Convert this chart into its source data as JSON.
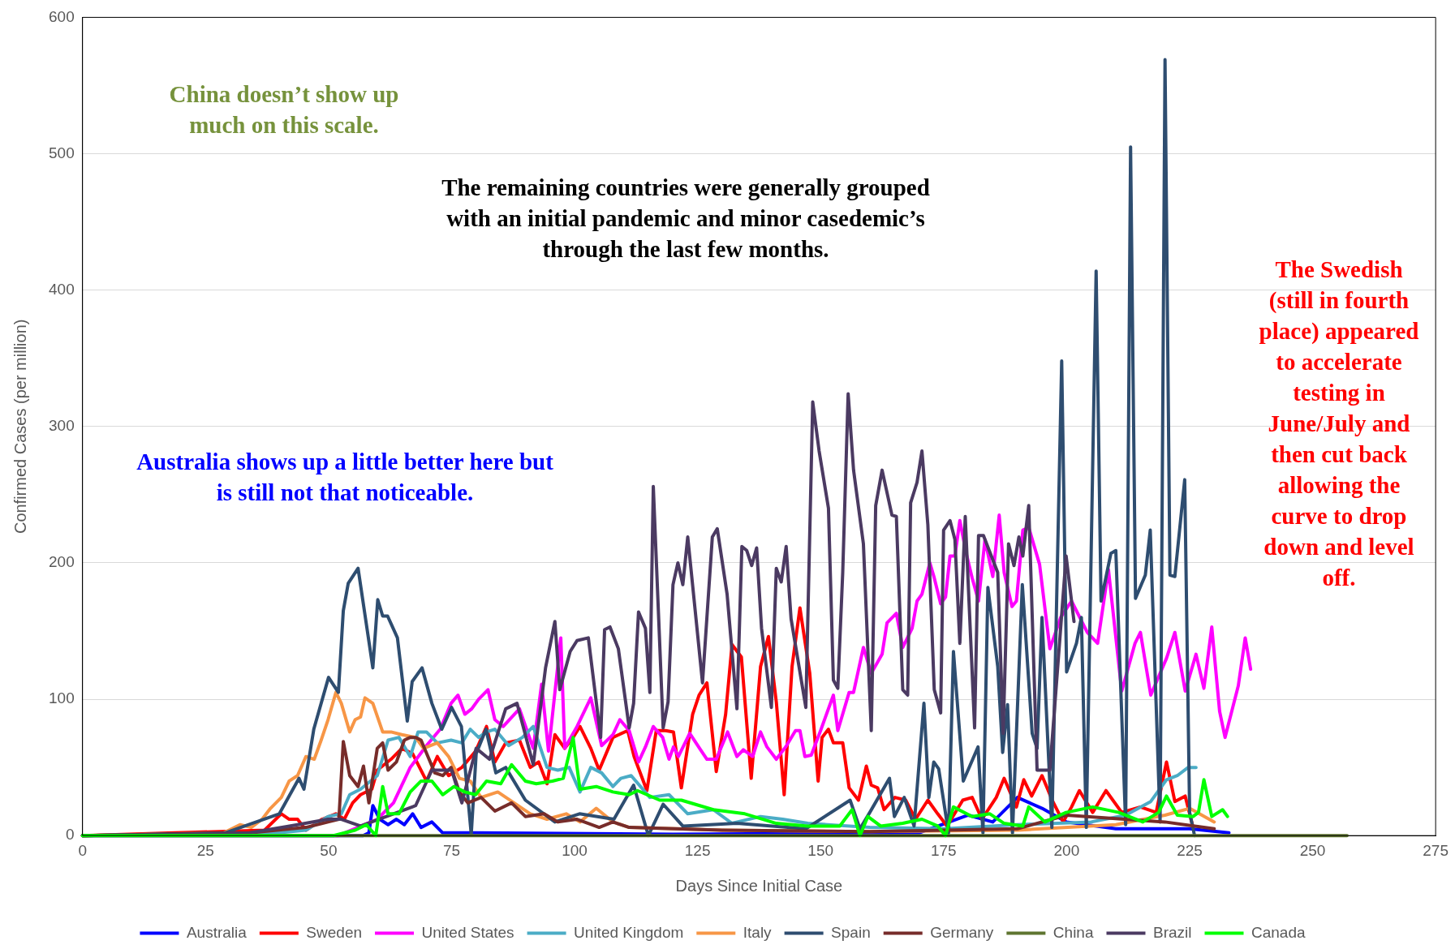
{
  "chart_data": {
    "type": "line",
    "xlabel": "Days Since Initial Case",
    "ylabel": "Confirmed Cases (per million)",
    "xlim": [
      0,
      275
    ],
    "xticks": [
      0,
      25,
      50,
      75,
      100,
      125,
      150,
      175,
      200,
      225,
      250,
      275
    ],
    "ylim": [
      0,
      600
    ],
    "yticks": [
      0,
      100,
      200,
      300,
      400,
      500,
      600
    ],
    "grid": "y",
    "legend": "bottom",
    "marker": "none",
    "line_style": "solid",
    "annotations": [
      "China doesn’t show up much on this scale.",
      "The remaining countries were generally grouped with an initial pandemic and minor casedemic’s through the last few months.",
      "Australia shows up a little better here but is still not that noticeable.",
      "The Swedish (still in fourth place) appeared to accelerate testing in June/July and then cut back allowing the curve to drop down and level off."
    ],
    "series": [
      {
        "name": "Australia",
        "color": "#0000ff",
        "x": [
          0,
          57,
          58.2,
          59,
          60.4,
          62.1,
          63.8,
          65.4,
          67.1,
          68.8,
          71,
          73.2,
          80,
          120,
          170,
          180,
          185,
          190,
          195,
          200,
          210,
          220,
          225,
          233
        ],
        "values": [
          0,
          0,
          2,
          22,
          12,
          8,
          12,
          8,
          16,
          6,
          10,
          2,
          2,
          1,
          2,
          15,
          10,
          28,
          20,
          10,
          5,
          5,
          5,
          2
        ]
      },
      {
        "name": "Sweden",
        "color": "#ff0000",
        "x": [
          0,
          37,
          40.4,
          42,
          43.7,
          45.4,
          48.7,
          51.5,
          53.2,
          54.9,
          56.5,
          58.8,
          59.9,
          62.7,
          64.9,
          67.1,
          69.9,
          72.1,
          74.4,
          77.1,
          79.9,
          82.1,
          83.8,
          86,
          88.8,
          91,
          92.7,
          94.4,
          96,
          98,
          99.7,
          101.1,
          103.3,
          105,
          107.8,
          110.8,
          112.1,
          114.7,
          116.6,
          118.5,
          120.1,
          121.7,
          124,
          125.3,
          126.9,
          128.8,
          130.7,
          132,
          133.9,
          135.9,
          137.8,
          139.4,
          141,
          142.6,
          144.2,
          145.8,
          147.8,
          149.5,
          150.3,
          151.6,
          152.6,
          154.5,
          155.8,
          157.7,
          159.3,
          160.3,
          161.6,
          162.9,
          165.1,
          167.3,
          169.3,
          171.8,
          173.8,
          175.7,
          178.9,
          180.8,
          182.8,
          185.7,
          187.3,
          189.8,
          191.3,
          192.9,
          195,
          197.2,
          199.3,
          201,
          202.6,
          205.3,
          208,
          211.2,
          215,
          218.2,
          220.3,
          222,
          224.1,
          225.7
        ],
        "values": [
          0,
          4,
          16,
          12,
          12,
          4,
          12,
          16,
          12,
          24,
          30,
          34,
          48,
          56,
          64,
          60,
          40,
          58,
          44,
          50,
          62,
          80,
          54,
          68,
          70,
          50,
          54,
          38,
          74,
          64,
          72,
          80,
          64,
          48,
          72,
          77,
          58,
          33,
          77,
          77,
          76,
          35,
          89,
          103,
          112,
          47,
          89,
          140,
          131,
          42,
          124,
          146,
          98,
          30,
          124,
          167,
          119,
          40,
          72,
          78,
          68,
          68,
          35,
          26,
          51,
          37,
          35,
          19,
          28,
          26,
          12,
          26,
          16,
          7,
          26,
          28,
          12,
          28,
          42,
          21,
          41,
          29,
          44,
          25,
          10,
          21,
          33,
          17,
          33,
          17,
          21,
          17,
          54,
          25,
          29,
          6
        ]
      },
      {
        "name": "United States",
        "color": "#ff00ff",
        "x": [
          0,
          52,
          59.9,
          63.2,
          66.6,
          69.9,
          72.7,
          74.9,
          76.3,
          77.7,
          79.1,
          80.5,
          82.4,
          83.8,
          85.5,
          88.8,
          91.6,
          93.3,
          94.7,
          95.2,
          97.2,
          98,
          100.5,
          103.3,
          105.5,
          107.8,
          109.2,
          111.1,
          113,
          114.4,
          116,
          117.9,
          119.2,
          120.1,
          121.1,
          123.4,
          125.6,
          126.9,
          128.8,
          131.1,
          133,
          134.3,
          136.2,
          137.8,
          139.1,
          141,
          142.9,
          144.9,
          145.8,
          146.8,
          148.1,
          150,
          152.6,
          153.5,
          155.8,
          156.7,
          158.7,
          160.3,
          162.5,
          163.5,
          165.4,
          166.7,
          168.6,
          169.6,
          170.6,
          172.2,
          173.1,
          174.4,
          175.4,
          176.3,
          177.3,
          178.3,
          179.6,
          180.8,
          182.1,
          183.4,
          185,
          186.3,
          187.3,
          188.9,
          189.8,
          191.1,
          192.3,
          194.5,
          196.6,
          198.8,
          201,
          204.2,
          206.3,
          208.5,
          211.2,
          213.9,
          215,
          217.1,
          220.3,
          222,
          224.1,
          226.3,
          227.9,
          229.5,
          231.1,
          232.2,
          234.9,
          236.3,
          237.4
        ],
        "values": [
          0,
          0,
          12,
          24,
          50,
          66,
          78,
          97,
          103,
          89,
          93,
          100,
          107,
          85,
          80,
          93,
          64,
          111,
          62,
          78,
          145,
          64,
          80,
          101,
          66,
          74,
          85,
          77,
          54,
          65,
          80,
          72,
          56,
          65,
          58,
          75,
          63,
          56,
          56,
          76,
          58,
          63,
          58,
          76,
          65,
          56,
          65,
          77,
          77,
          58,
          59,
          77,
          103,
          77,
          105,
          105,
          138,
          119,
          133,
          156,
          163,
          138,
          152,
          172,
          177,
          200,
          189,
          170,
          175,
          205,
          205,
          231,
          207,
          189,
          172,
          217,
          190,
          235,
          193,
          168,
          172,
          224,
          226,
          199,
          137,
          160,
          172,
          149,
          141,
          195,
          106,
          141,
          149,
          103,
          130,
          149,
          106,
          133,
          108,
          153,
          91,
          72,
          110,
          145,
          122
        ]
      },
      {
        "name": "United Kingdom",
        "color": "#4bacc6",
        "x": [
          0,
          39.8,
          45.4,
          49.9,
          52.6,
          54.3,
          56.5,
          59.9,
          62.1,
          64.3,
          66.6,
          68.2,
          69.9,
          72.1,
          74.9,
          77.1,
          78.8,
          80.5,
          82.1,
          83.8,
          86.6,
          89.4,
          91.6,
          94.4,
          96.6,
          98.9,
          101.1,
          103.3,
          105.5,
          107.8,
          109.4,
          111.5,
          115.3,
          119.2,
          123,
          128.2,
          132,
          137.8,
          142.3,
          147.4,
          160,
          175,
          190,
          205,
          212,
          217.1,
          220.3,
          222.5,
          224.7,
          226.3
        ],
        "values": [
          0,
          2,
          4,
          14,
          16,
          30,
          34,
          44,
          70,
          72,
          58,
          76,
          76,
          68,
          70,
          68,
          78,
          72,
          76,
          78,
          66,
          72,
          80,
          50,
          48,
          50,
          32,
          50,
          46,
          36,
          42,
          44,
          28,
          30,
          16,
          19,
          9,
          14,
          12,
          9,
          6,
          5,
          8,
          10,
          15,
          25,
          41,
          44,
          50,
          50
        ]
      },
      {
        "name": "Italy",
        "color": "#f79646",
        "x": [
          0,
          28.7,
          32,
          34.3,
          36.5,
          38.2,
          40.4,
          42,
          43.7,
          45.4,
          47.1,
          48.5,
          49.9,
          51.5,
          52.6,
          54.3,
          55.4,
          56.5,
          57.4,
          59,
          61,
          62.7,
          64.9,
          67.7,
          69.3,
          72.1,
          74.4,
          76.6,
          78.8,
          81,
          84.4,
          87.7,
          91,
          94.4,
          98.3,
          101.1,
          104.4,
          107.8,
          111.1,
          130,
          160,
          190,
          210,
          220,
          225,
          230
        ],
        "values": [
          0,
          2,
          8,
          6,
          12,
          20,
          28,
          40,
          44,
          58,
          56,
          70,
          85,
          105,
          97,
          76,
          85,
          87,
          101,
          97,
          76,
          76,
          74,
          72,
          64,
          68,
          58,
          42,
          40,
          28,
          32,
          24,
          16,
          12,
          16,
          10,
          20,
          10,
          6,
          4,
          3,
          4,
          8,
          15,
          20,
          10
        ]
      },
      {
        "name": "Spain",
        "color": "#2e4d70",
        "x": [
          0,
          29,
          40,
          44,
          45,
          47,
          50,
          52,
          53,
          54,
          56,
          59,
          60,
          61,
          62,
          64,
          66,
          67,
          69,
          71,
          73,
          75,
          77,
          79,
          80,
          82,
          84,
          86,
          90,
          96,
          101,
          108,
          112,
          115,
          118,
          122,
          133,
          147,
          156,
          158,
          160,
          164,
          165,
          167,
          169,
          171,
          172,
          173,
          174,
          176,
          177,
          179,
          182,
          183,
          184,
          186,
          187,
          188,
          189,
          191,
          193,
          194,
          195,
          197,
          199,
          200,
          202,
          203,
          204,
          206,
          207,
          209,
          210,
          212,
          213,
          214,
          216,
          217,
          219,
          220,
          221,
          222,
          224,
          225,
          226
        ],
        "values": [
          0,
          2,
          16,
          42,
          34,
          78,
          116,
          105,
          165,
          185,
          196,
          123,
          173,
          161,
          161,
          145,
          84,
          113,
          123,
          97,
          78,
          94,
          80,
          1,
          60,
          78,
          46,
          50,
          26,
          10,
          16,
          12,
          37,
          0,
          23,
          7,
          9,
          5,
          26,
          5,
          17,
          42,
          14,
          28,
          7,
          97,
          28,
          54,
          49,
          2,
          135,
          40,
          65,
          2,
          182,
          124,
          61,
          96,
          2,
          184,
          75,
          64,
          160,
          6,
          348,
          120,
          141,
          160,
          6,
          414,
          172,
          207,
          209,
          8,
          505,
          174,
          191,
          224,
          10,
          569,
          191,
          190,
          261,
          17,
          0
        ]
      },
      {
        "name": "Germany",
        "color": "#772c2a",
        "x": [
          0,
          34,
          45.4,
          49.9,
          52.1,
          53,
          54.3,
          56,
          57.1,
          58.2,
          59.9,
          61,
          62.1,
          63.8,
          65.4,
          66.6,
          67.7,
          68.8,
          70.2,
          71.6,
          73.2,
          74.9,
          76.6,
          78.3,
          81,
          83.8,
          87.2,
          90,
          93.8,
          96.6,
          100.5,
          105,
          107.8,
          111.1,
          130,
          160,
          190,
          200,
          220,
          230
        ],
        "values": [
          0,
          2,
          6,
          10,
          12,
          69,
          44,
          36,
          51,
          24,
          64,
          68,
          48,
          54,
          70,
          72,
          72,
          70,
          58,
          46,
          44,
          50,
          32,
          24,
          28,
          18,
          24,
          14,
          16,
          10,
          12,
          6,
          10,
          6,
          4,
          3,
          5,
          15,
          10,
          5
        ]
      },
      {
        "name": "China",
        "color": "#5f7530",
        "x": [
          0,
          257
        ],
        "values": [
          0,
          0
        ]
      },
      {
        "name": "Brazil",
        "color": "#4b3a62",
        "x": [
          0,
          34,
          43.7,
          49.9,
          52.6,
          56.5,
          67.7,
          71,
          75,
          77.1,
          80,
          82.7,
          86,
          88.3,
          91.6,
          94.1,
          96,
          97,
          99.1,
          100.5,
          102.8,
          105.3,
          106.1,
          107.2,
          108.9,
          111.1,
          112,
          113,
          114.4,
          115.3,
          116,
          118,
          119,
          120,
          121,
          122,
          123,
          126,
          128,
          129,
          131,
          133,
          134,
          135,
          136,
          137,
          138,
          140,
          141,
          142,
          143,
          144,
          147,
          148.4,
          149.7,
          151.6,
          152.6,
          153.5,
          154.5,
          155.6,
          156.7,
          158.7,
          160.3,
          161.2,
          162.5,
          164.5,
          165.4,
          166.7,
          167.7,
          168.3,
          169.6,
          170.6,
          171.8,
          173.1,
          174.4,
          175,
          176.3,
          177.3,
          178.3,
          179.4,
          181.3,
          182.1,
          183.1,
          184.7,
          186,
          187.1,
          188.2,
          189.3,
          190.3,
          191.1,
          192.3,
          194,
          196.6,
          199.9,
          201.5
        ],
        "values": [
          0,
          2,
          8,
          12,
          12,
          7,
          22,
          48,
          48,
          24,
          64,
          56,
          93,
          97,
          52,
          123,
          157,
          107,
          135,
          143,
          145,
          72,
          151,
          153,
          137,
          79,
          97,
          164,
          152,
          105,
          256,
          79,
          98,
          184,
          200,
          184,
          219,
          112,
          219,
          225,
          177,
          93,
          212,
          209,
          198,
          211,
          152,
          94,
          196,
          186,
          212,
          159,
          94,
          318,
          282,
          240,
          114,
          108,
          193,
          324,
          268,
          214,
          77,
          242,
          268,
          235,
          234,
          107,
          103,
          244,
          259,
          282,
          228,
          107,
          90,
          224,
          231,
          217,
          141,
          234,
          79,
          220,
          220,
          205,
          193,
          75,
          214,
          198,
          219,
          205,
          242,
          48,
          48,
          205,
          157
        ]
      },
      {
        "name": "Canada",
        "color": "#00ff00",
        "x": [
          0,
          51,
          55.4,
          57.7,
          59.6,
          61,
          62.1,
          64.3,
          66.6,
          68.8,
          71,
          73.2,
          75.5,
          77.7,
          79.9,
          82.1,
          85,
          87.2,
          90,
          92.2,
          95.5,
          97.7,
          99.7,
          101.1,
          104.4,
          107.8,
          111.1,
          112.8,
          117.3,
          121.7,
          128.2,
          134.6,
          141,
          147.4,
          153.9,
          156.4,
          158,
          159.6,
          162.2,
          166.7,
          170.6,
          173.8,
          175.4,
          177,
          180.8,
          184.4,
          187.3,
          191.1,
          192.3,
          195.6,
          199.9,
          205.3,
          210.6,
          215.5,
          218.7,
          220.3,
          222.5,
          225.7,
          226.8,
          227.9,
          229.5,
          231.7,
          232.7
        ],
        "values": [
          0,
          0,
          4,
          8,
          0,
          36,
          16,
          16,
          32,
          40,
          40,
          30,
          36,
          32,
          30,
          40,
          38,
          52,
          40,
          38,
          40,
          42,
          72,
          34,
          36,
          32,
          30,
          33,
          26,
          26,
          19,
          16,
          9,
          7,
          7,
          19,
          0,
          14,
          7,
          9,
          12,
          7,
          0,
          21,
          14,
          16,
          9,
          7,
          21,
          10,
          17,
          21,
          17,
          10,
          17,
          29,
          15,
          14,
          17,
          41,
          14,
          19,
          14
        ]
      }
    ]
  }
}
